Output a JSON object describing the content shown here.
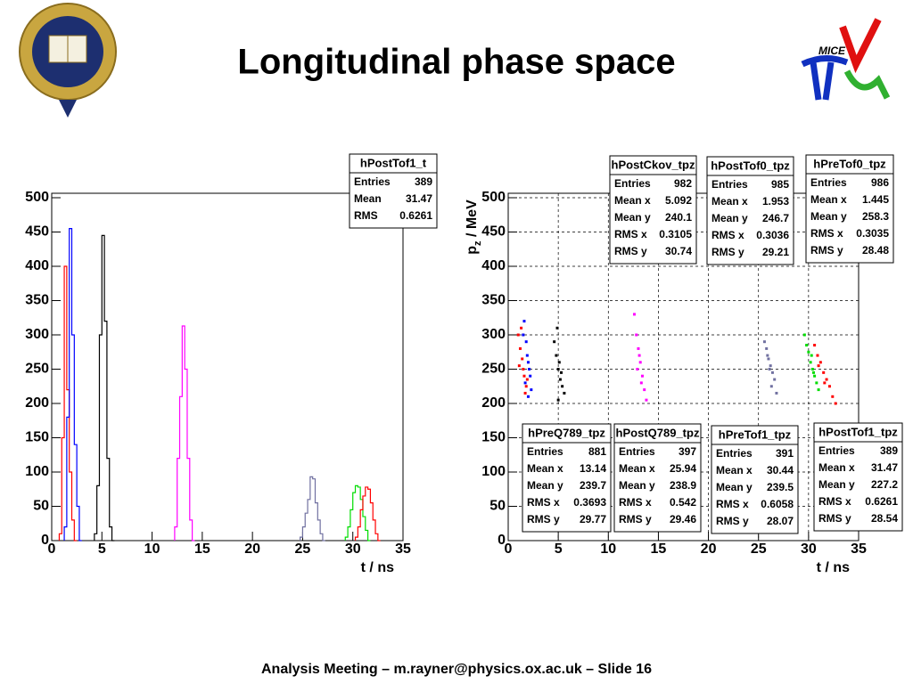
{
  "title": "Longitudinal phase space",
  "footer": "Analysis Meeting – m.rayner@physics.ox.ac.uk – Slide 16",
  "logo_text": "MICE",
  "chart_data": [
    {
      "type": "step",
      "xlim": [
        0,
        35
      ],
      "ylim": [
        0,
        500
      ],
      "xticks": [
        0,
        5,
        10,
        15,
        20,
        25,
        30,
        35
      ],
      "yticks": [
        0,
        50,
        100,
        150,
        200,
        250,
        300,
        350,
        400,
        450,
        500
      ],
      "grid": false,
      "xlabel": "t / ns",
      "stat_box": {
        "name": "hPostTof1_t",
        "stats": [
          [
            "Entries",
            389
          ],
          [
            "Mean",
            31.47
          ],
          [
            "RMS",
            0.6261
          ]
        ]
      },
      "series": [
        {
          "color": "#ff0000",
          "x": [
            0.75,
            1.0,
            1.25,
            1.5,
            1.75,
            2.0,
            2.25
          ],
          "values": [
            10,
            150,
            400,
            220,
            100,
            30,
            0
          ]
        },
        {
          "color": "#0000ff",
          "x": [
            1.25,
            1.5,
            1.75,
            2.0,
            2.25,
            2.5,
            2.75
          ],
          "values": [
            20,
            180,
            455,
            300,
            140,
            50,
            0
          ]
        },
        {
          "color": "#000000",
          "x": [
            4.25,
            4.5,
            4.75,
            5.0,
            5.25,
            5.5,
            5.75,
            6.0
          ],
          "values": [
            10,
            80,
            300,
            445,
            320,
            120,
            20,
            0
          ]
        },
        {
          "color": "#ff00ff",
          "x": [
            12.25,
            12.5,
            12.75,
            13.0,
            13.25,
            13.5,
            13.75,
            14.0
          ],
          "values": [
            20,
            120,
            210,
            313,
            250,
            120,
            30,
            0
          ]
        },
        {
          "color": "#7070a0",
          "x": [
            24.75,
            25.0,
            25.25,
            25.5,
            25.75,
            26.0,
            26.25,
            26.5,
            26.75,
            27.0
          ],
          "values": [
            5,
            20,
            40,
            60,
            93,
            90,
            55,
            30,
            10,
            0
          ]
        },
        {
          "color": "#00dd00",
          "x": [
            29.25,
            29.5,
            29.75,
            30.0,
            30.25,
            30.5,
            30.75,
            31.0,
            31.25,
            31.5
          ],
          "values": [
            5,
            20,
            45,
            70,
            80,
            78,
            60,
            35,
            15,
            0
          ]
        },
        {
          "color": "#ff0000",
          "x": [
            30.25,
            30.5,
            30.75,
            31.0,
            31.25,
            31.5,
            31.75,
            32.0,
            32.25,
            32.5
          ],
          "values": [
            5,
            20,
            45,
            65,
            78,
            75,
            55,
            30,
            10,
            0
          ]
        }
      ]
    },
    {
      "type": "scatter",
      "xlim": [
        0,
        35
      ],
      "ylim": [
        0,
        500
      ],
      "xticks": [
        0,
        5,
        10,
        15,
        20,
        25,
        30,
        35
      ],
      "yticks": [
        0,
        50,
        100,
        150,
        200,
        250,
        300,
        350,
        400,
        450,
        500
      ],
      "grid": true,
      "xlabel": "t / ns",
      "ylabel": [
        "p",
        "z",
        " / MeV"
      ],
      "series": [
        {
          "name": "hPostCkov_tpz",
          "color": "#000000",
          "stats": [
            [
              "Entries",
              982
            ],
            [
              "Mean x",
              5.092
            ],
            [
              "Mean y",
              240.1
            ],
            [
              "RMS x",
              0.3105
            ],
            [
              "RMS y",
              30.74
            ]
          ],
          "x": [
            4.6,
            4.8,
            5.0,
            5.2,
            5.4,
            5.6,
            4.9,
            5.1,
            5.3,
            5.0
          ],
          "values": [
            290,
            270,
            250,
            235,
            225,
            215,
            310,
            260,
            245,
            205
          ]
        },
        {
          "name": "hPostTof0_tpz",
          "color": "#0000ff",
          "stats": [
            [
              "Entries",
              985
            ],
            [
              "Mean x",
              1.953
            ],
            [
              "Mean y",
              246.7
            ],
            [
              "RMS x",
              0.3036
            ],
            [
              "RMS y",
              29.21
            ]
          ],
          "x": [
            1.6,
            1.8,
            2.0,
            2.2,
            1.7,
            1.9,
            2.1,
            2.3,
            1.5,
            2.0
          ],
          "values": [
            320,
            290,
            260,
            240,
            230,
            270,
            250,
            220,
            300,
            210
          ]
        },
        {
          "name": "hPreTof0_tpz",
          "color": "#ff0000",
          "stats": [
            [
              "Entries",
              986
            ],
            [
              "Mean x",
              1.445
            ],
            [
              "Mean y",
              258.3
            ],
            [
              "RMS x",
              0.3035
            ],
            [
              "RMS y",
              28.48
            ]
          ],
          "x": [
            1.0,
            1.2,
            1.4,
            1.5,
            1.6,
            1.8,
            1.3,
            1.1,
            1.7,
            1.9
          ],
          "values": [
            300,
            280,
            265,
            250,
            240,
            225,
            310,
            255,
            215,
            235
          ]
        },
        {
          "name": "hPreQ789_tpz",
          "color": "#ff00ff",
          "stats": [
            [
              "Entries",
              881
            ],
            [
              "Mean x",
              13.14
            ],
            [
              "Mean y",
              239.7
            ],
            [
              "RMS x",
              0.3693
            ],
            [
              "RMS y",
              29.77
            ]
          ],
          "x": [
            12.6,
            12.8,
            13.0,
            13.2,
            13.4,
            13.6,
            13.1,
            12.9,
            13.3,
            13.8
          ],
          "values": [
            330,
            300,
            280,
            260,
            240,
            220,
            270,
            250,
            230,
            205
          ]
        },
        {
          "name": "hPostQ789_tpz",
          "color": "#7070a0",
          "stats": [
            [
              "Entries",
              397
            ],
            [
              "Mean x",
              25.94
            ],
            [
              "Mean y",
              238.9
            ],
            [
              "RMS x",
              0.542
            ],
            [
              "RMS y",
              29.46
            ]
          ],
          "x": [
            25.6,
            25.8,
            26.0,
            26.2,
            26.4,
            26.6,
            26.1,
            25.9,
            26.3,
            26.8
          ],
          "values": [
            290,
            280,
            265,
            255,
            245,
            235,
            250,
            270,
            225,
            215
          ]
        },
        {
          "name": "hPreTof1_tpz",
          "color": "#00dd00",
          "stats": [
            [
              "Entries",
              391
            ],
            [
              "Mean x",
              30.44
            ],
            [
              "Mean y",
              239.5
            ],
            [
              "RMS x",
              0.6058
            ],
            [
              "RMS y",
              28.07
            ]
          ],
          "x": [
            29.6,
            29.8,
            30.0,
            30.2,
            30.4,
            30.6,
            30.8,
            31.0,
            30.3,
            30.5
          ],
          "values": [
            300,
            285,
            275,
            260,
            250,
            240,
            230,
            220,
            270,
            245
          ]
        },
        {
          "name": "hPostTof1_tpz",
          "color": "#ff0000",
          "stats": [
            [
              "Entries",
              389
            ],
            [
              "Mean x",
              31.47
            ],
            [
              "Mean y",
              227.2
            ],
            [
              "RMS x",
              0.6261
            ],
            [
              "RMS y",
              28.54
            ]
          ],
          "x": [
            30.6,
            30.9,
            31.2,
            31.5,
            31.8,
            32.1,
            32.4,
            31.0,
            31.6,
            32.7
          ],
          "values": [
            285,
            270,
            260,
            245,
            235,
            225,
            210,
            255,
            230,
            200
          ]
        }
      ]
    }
  ]
}
